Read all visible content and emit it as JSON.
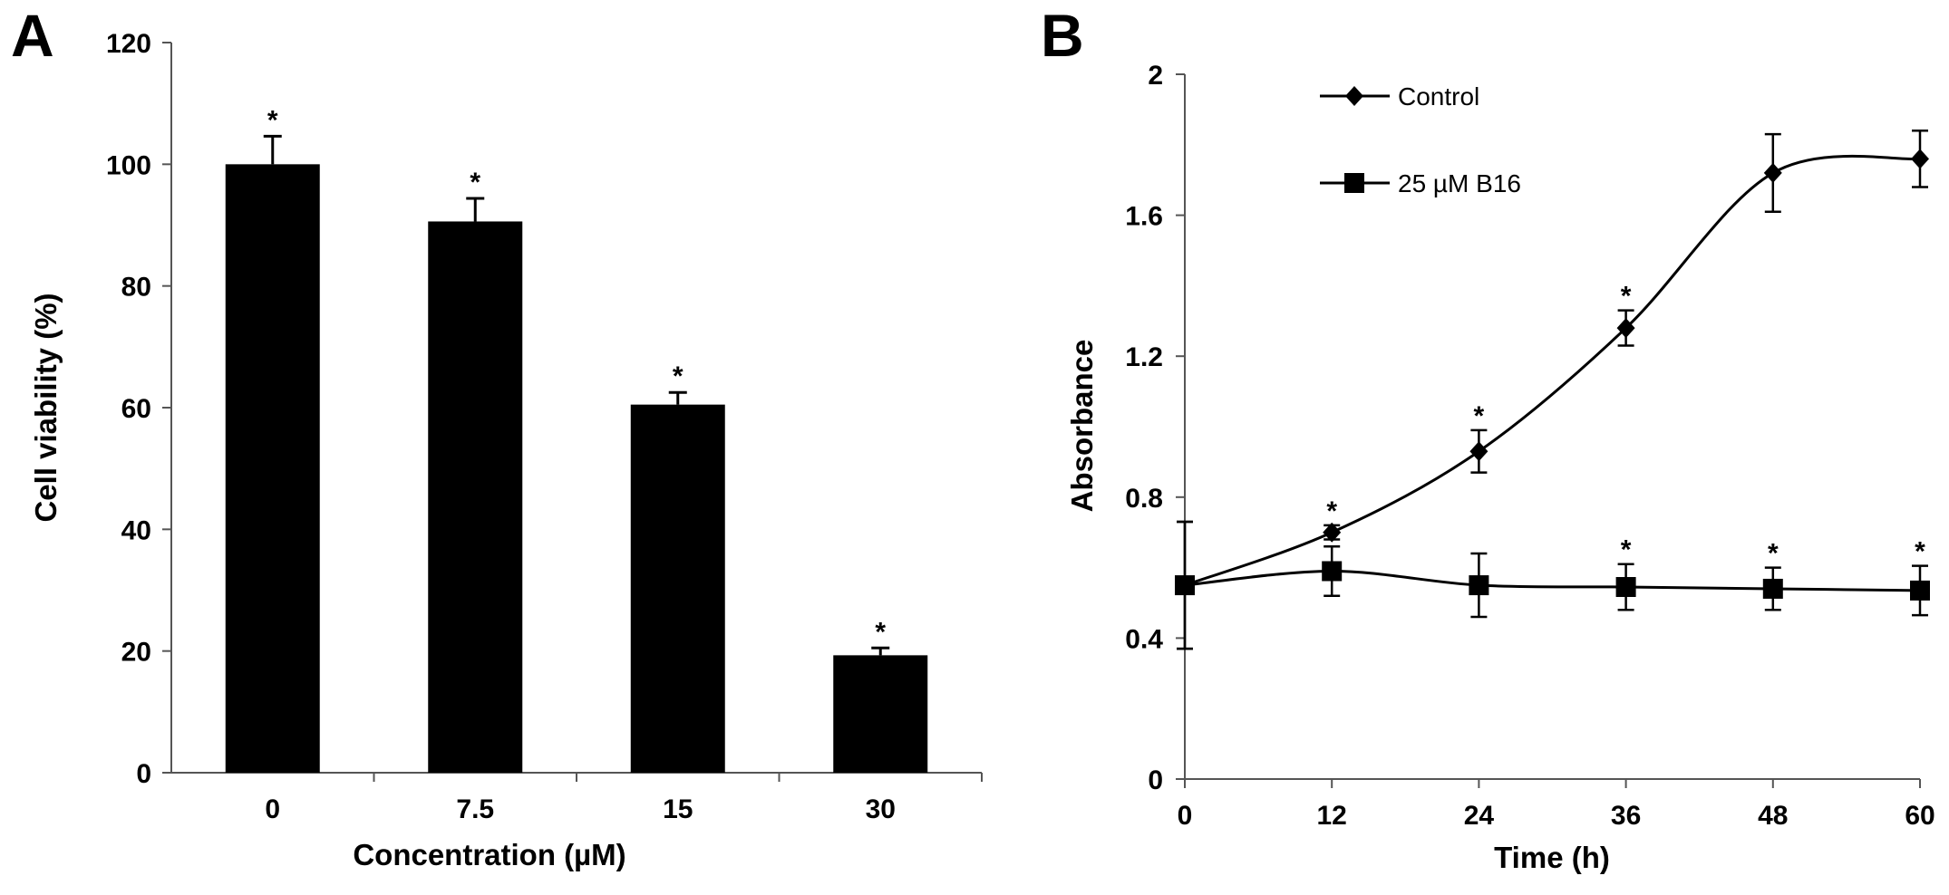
{
  "chart_data": [
    {
      "panel_label": "A",
      "type": "bar",
      "title": "",
      "xlabel": "Concentration (µM)",
      "ylabel": "Cell viability (%)",
      "categories": [
        "0",
        "7.5",
        "15",
        "30"
      ],
      "values": [
        100,
        90.6,
        60.5,
        19.3
      ],
      "errors": [
        4.6,
        3.8,
        2.0,
        1.2
      ],
      "significance": [
        "*",
        "*",
        "*",
        "*"
      ],
      "ylim": [
        0,
        120
      ],
      "yticks": [
        "0",
        "20",
        "40",
        "60",
        "80",
        "100",
        "120"
      ],
      "grid": false,
      "bar_color": "#000000"
    },
    {
      "panel_label": "B",
      "type": "line",
      "title": "",
      "xlabel": "Time (h)",
      "ylabel": "Absorbance",
      "x": [
        0,
        12,
        24,
        36,
        48,
        60
      ],
      "xticks": [
        "0",
        "12",
        "24",
        "36",
        "48",
        "60"
      ],
      "yticks": [
        "0",
        "0.4",
        "0.8",
        "1.2",
        "1.6",
        "2"
      ],
      "xlim": [
        0,
        60
      ],
      "ylim": [
        0,
        2
      ],
      "grid": false,
      "legend_position": "top-left",
      "series": [
        {
          "name": "Control",
          "marker": "diamond",
          "values": [
            0.55,
            0.7,
            0.93,
            1.28,
            1.72,
            1.76
          ],
          "errors": [
            0.18,
            0.02,
            0.06,
            0.05,
            0.11,
            0.08
          ],
          "significance": [
            "",
            "*",
            "*",
            "*",
            "",
            ""
          ]
        },
        {
          "name": "25 µM B16",
          "marker": "square",
          "values": [
            0.55,
            0.59,
            0.55,
            0.545,
            0.54,
            0.535
          ],
          "errors": [
            0.18,
            0.07,
            0.09,
            0.065,
            0.06,
            0.07
          ],
          "significance": [
            "",
            "",
            "",
            "*",
            "*",
            "*"
          ]
        }
      ]
    }
  ]
}
